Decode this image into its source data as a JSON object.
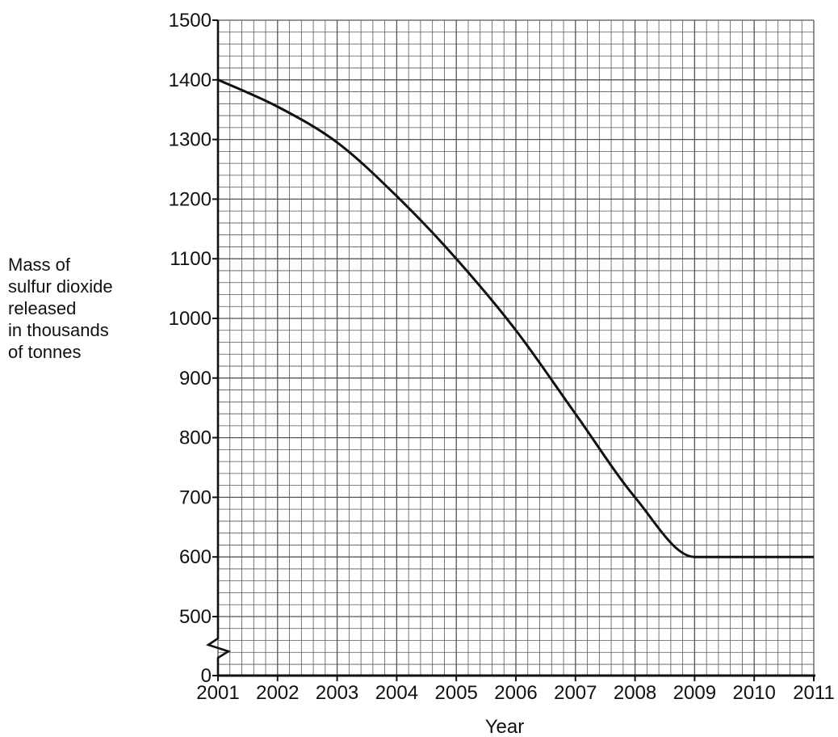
{
  "chart_data": {
    "type": "line",
    "title": "",
    "xlabel": "Year",
    "ylabel_lines": [
      "Mass of",
      "sulfur dioxide",
      "released",
      "in thousands",
      "of tonnes"
    ],
    "x_ticks": [
      "2001",
      "2002",
      "2003",
      "2004",
      "2005",
      "2006",
      "2007",
      "2008",
      "2009",
      "2010",
      "2011"
    ],
    "y_ticks": [
      "0",
      "500",
      "600",
      "700",
      "800",
      "900",
      "1000",
      "1100",
      "1200",
      "1300",
      "1400",
      "1500"
    ],
    "xlim": [
      2001,
      2011
    ],
    "ylim": [
      400,
      1500
    ],
    "axis_break": "y-axis break between 0 and 500",
    "grid": true,
    "series": [
      {
        "color": "#111111",
        "x": [
          2001,
          2002,
          2003,
          2004,
          2005,
          2006,
          2007,
          2008,
          2009,
          2010,
          2011
        ],
        "y": [
          1400,
          1355,
          1295,
          1205,
          1100,
          980,
          840,
          700,
          600,
          600,
          600
        ]
      }
    ]
  }
}
